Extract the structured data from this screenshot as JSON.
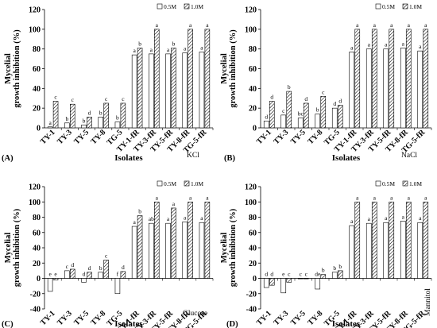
{
  "figure": {
    "y_axis_title_line1": "Mycelial",
    "y_axis_title_line2": "growth inhibition (%)",
    "x_axis_title": "Isolates"
  },
  "chart_data": [
    {
      "type": "bar",
      "panel_label": "(A)",
      "condition": "KCl",
      "xlabel": "Isolates",
      "ylabel": "Mycelial growth inhibition (%)",
      "ylim": [
        0,
        120
      ],
      "yticks": [
        0,
        20,
        40,
        60,
        80,
        100,
        120
      ],
      "legend_position": "top-right",
      "categories": [
        "TY-1",
        "TY-3",
        "TY-5",
        "TY-8",
        "TG-5",
        "TY-1-fR",
        "TY-3-fR",
        "TY-5-fR",
        "TY-8-fR",
        "TG-5-fR"
      ],
      "series": [
        {
          "name": "0.5M",
          "values": [
            1,
            5,
            3,
            11,
            6,
            74,
            75,
            75,
            76,
            77
          ],
          "letters": [
            "a",
            "b",
            "b",
            "b",
            "b",
            "a",
            "a",
            "a",
            "a",
            "a"
          ]
        },
        {
          "name": "1.0M",
          "values": [
            27,
            24,
            11,
            25,
            25,
            81,
            100,
            81,
            100,
            100
          ],
          "letters": [
            "c",
            "c",
            "d",
            "c",
            "c",
            "b",
            "a",
            "b",
            "a",
            "a"
          ]
        }
      ]
    },
    {
      "type": "bar",
      "panel_label": "(B)",
      "condition": "NaCl",
      "xlabel": "Isolates",
      "ylabel": "Mycelial growth inhibition (%)",
      "ylim": [
        0,
        120
      ],
      "yticks": [
        0,
        20,
        40,
        60,
        80,
        100,
        120
      ],
      "legend_position": "top-right",
      "categories": [
        "TY-1",
        "TY-3",
        "TY-5",
        "TY-8",
        "TG-5",
        "TY-1-fR",
        "TY-3-fR",
        "TY-5-fR",
        "TY-8-fR",
        "TG-5-fR"
      ],
      "series": [
        {
          "name": "0.5M",
          "values": [
            7,
            13,
            10,
            14,
            20,
            77,
            80,
            80,
            81,
            78
          ],
          "letters": [
            "d",
            "c",
            "bc",
            "b",
            "d",
            "a",
            "a",
            "a",
            "a",
            "a"
          ]
        },
        {
          "name": "1.0M",
          "values": [
            27,
            37,
            25,
            32,
            23,
            100,
            100,
            100,
            100,
            100
          ],
          "letters": [
            "d",
            "b",
            "d",
            "c",
            "d",
            "a",
            "a",
            "a",
            "a",
            "a"
          ]
        }
      ]
    },
    {
      "type": "bar",
      "panel_label": "(C)",
      "condition": "Glucose",
      "xlabel": "Isolates",
      "ylabel": "Mycelial growth inhibition (%)",
      "ylim": [
        -40,
        120
      ],
      "yticks": [
        -40,
        -20,
        0,
        20,
        40,
        60,
        80,
        100,
        120
      ],
      "legend_position": "top-right",
      "categories": [
        "TY-1",
        "TY-3",
        "TY-5",
        "TY-8",
        "TG-5",
        "TY-1-fR",
        "TY-3-fR",
        "TY-5-fR",
        "TY-8-fR",
        "TG-5-fR"
      ],
      "series": [
        {
          "name": "0.5M",
          "values": [
            -17,
            10,
            -5,
            8,
            -20,
            68,
            72,
            72,
            74,
            73
          ],
          "letters": [
            "e",
            "c",
            "d",
            "b",
            "f",
            "a",
            "ab",
            "a",
            "a",
            "a"
          ]
        },
        {
          "name": "1.0M",
          "values": [
            -2,
            12,
            8,
            24,
            9,
            82,
            100,
            92,
            100,
            100
          ],
          "letters": [
            "e",
            "d",
            "d",
            "c",
            "d",
            "b",
            "a",
            "a",
            "a",
            "a"
          ]
        }
      ]
    },
    {
      "type": "bar",
      "panel_label": "(D)",
      "condition": "Mannitol",
      "xlabel": "Isolates",
      "ylabel": "Mycelial growth inhibition (%)",
      "ylim": [
        -40,
        120
      ],
      "yticks": [
        -40,
        -20,
        0,
        20,
        40,
        60,
        80,
        100,
        120
      ],
      "legend_position": "top-right",
      "categories": [
        "TY-1",
        "TY-3",
        "TY-5",
        "TY-8",
        "TG-5",
        "TY-1-fR",
        "TY-3-fR",
        "TY-5-fR",
        "TY-8-fR",
        "TG-5-fR"
      ],
      "series": [
        {
          "name": "0.5M",
          "values": [
            -12,
            -19,
            0,
            -14,
            8,
            69,
            72,
            73,
            75,
            73
          ],
          "letters": [
            "d",
            "e",
            "c",
            "de",
            "b",
            "a",
            "a",
            "a",
            "a",
            "a"
          ]
        },
        {
          "name": "1.0M",
          "values": [
            -9,
            -5,
            0,
            5,
            10,
            100,
            100,
            100,
            100,
            100
          ],
          "letters": [
            "d",
            "c",
            "c",
            "b",
            "b",
            "a",
            "a",
            "a",
            "a",
            "a"
          ]
        }
      ]
    }
  ]
}
